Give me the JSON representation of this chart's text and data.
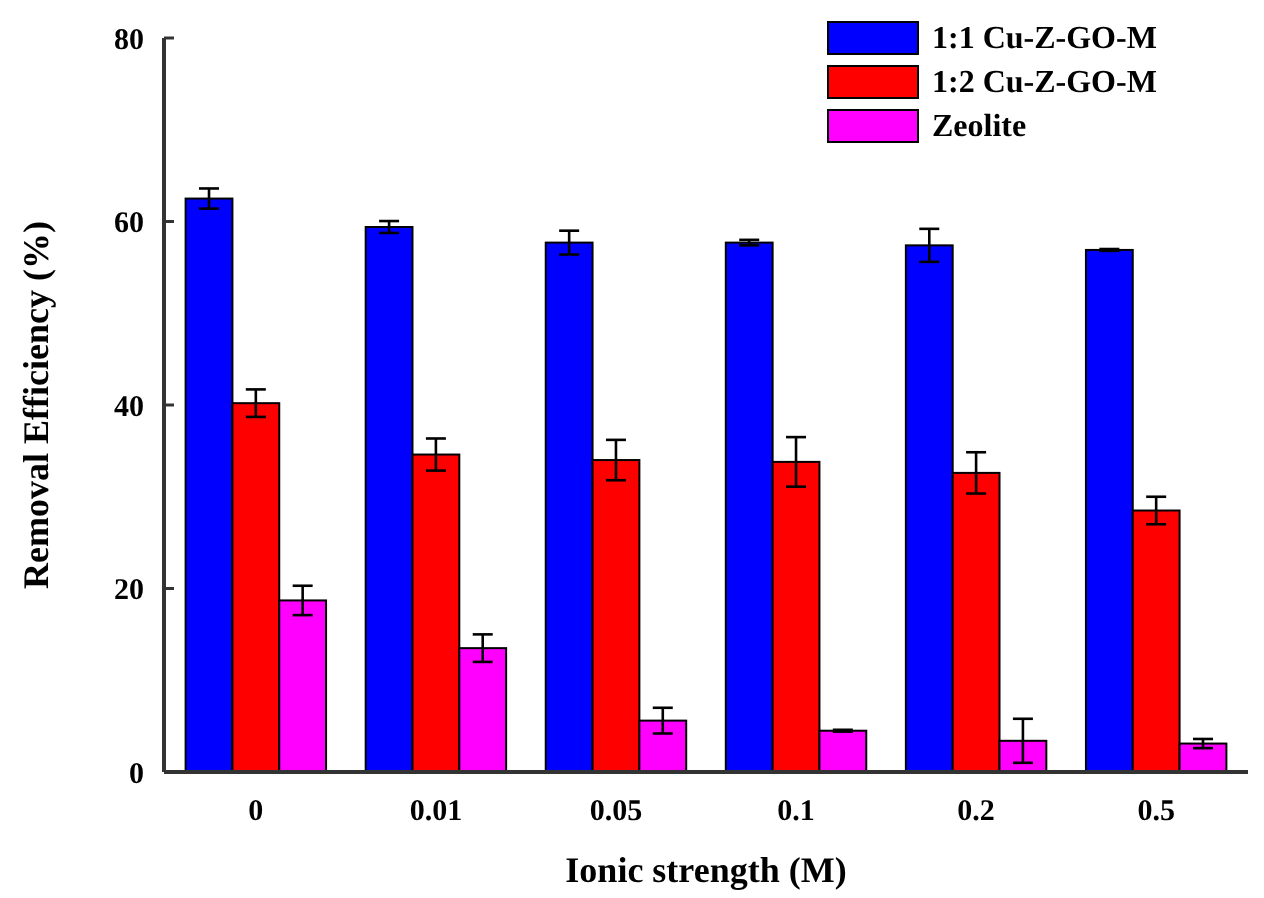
{
  "chart_data": {
    "type": "bar",
    "xlabel": "Ionic strength (M)",
    "ylabel": "Removal Efficiency (%)",
    "categories": [
      "0",
      "0.01",
      "0.05",
      "0.1",
      "0.2",
      "0.5"
    ],
    "ylim": [
      0,
      80
    ],
    "yticks": [
      0,
      20,
      40,
      60,
      80
    ],
    "grid": false,
    "legend": "top right",
    "series": [
      {
        "name": "1:1 Cu-Z-GO-M",
        "color": "#0000ff",
        "values": [
          62.5,
          59.4,
          57.7,
          57.7,
          57.4,
          56.9
        ],
        "errors": [
          1.1,
          0.65,
          1.3,
          0.3,
          1.8,
          0.1
        ]
      },
      {
        "name": "1:2 Cu-Z-GO-M",
        "color": "#ff0000",
        "values": [
          40.2,
          34.6,
          34.0,
          33.8,
          32.6,
          28.5
        ],
        "errors": [
          1.5,
          1.75,
          2.2,
          2.7,
          2.25,
          1.5
        ]
      },
      {
        "name": "Zeolite",
        "color": "#ff00ff",
        "values": [
          18.7,
          13.5,
          5.6,
          4.5,
          3.4,
          3.1
        ],
        "errors": [
          1.6,
          1.5,
          1.4,
          0.1,
          2.4,
          0.5
        ]
      }
    ]
  }
}
